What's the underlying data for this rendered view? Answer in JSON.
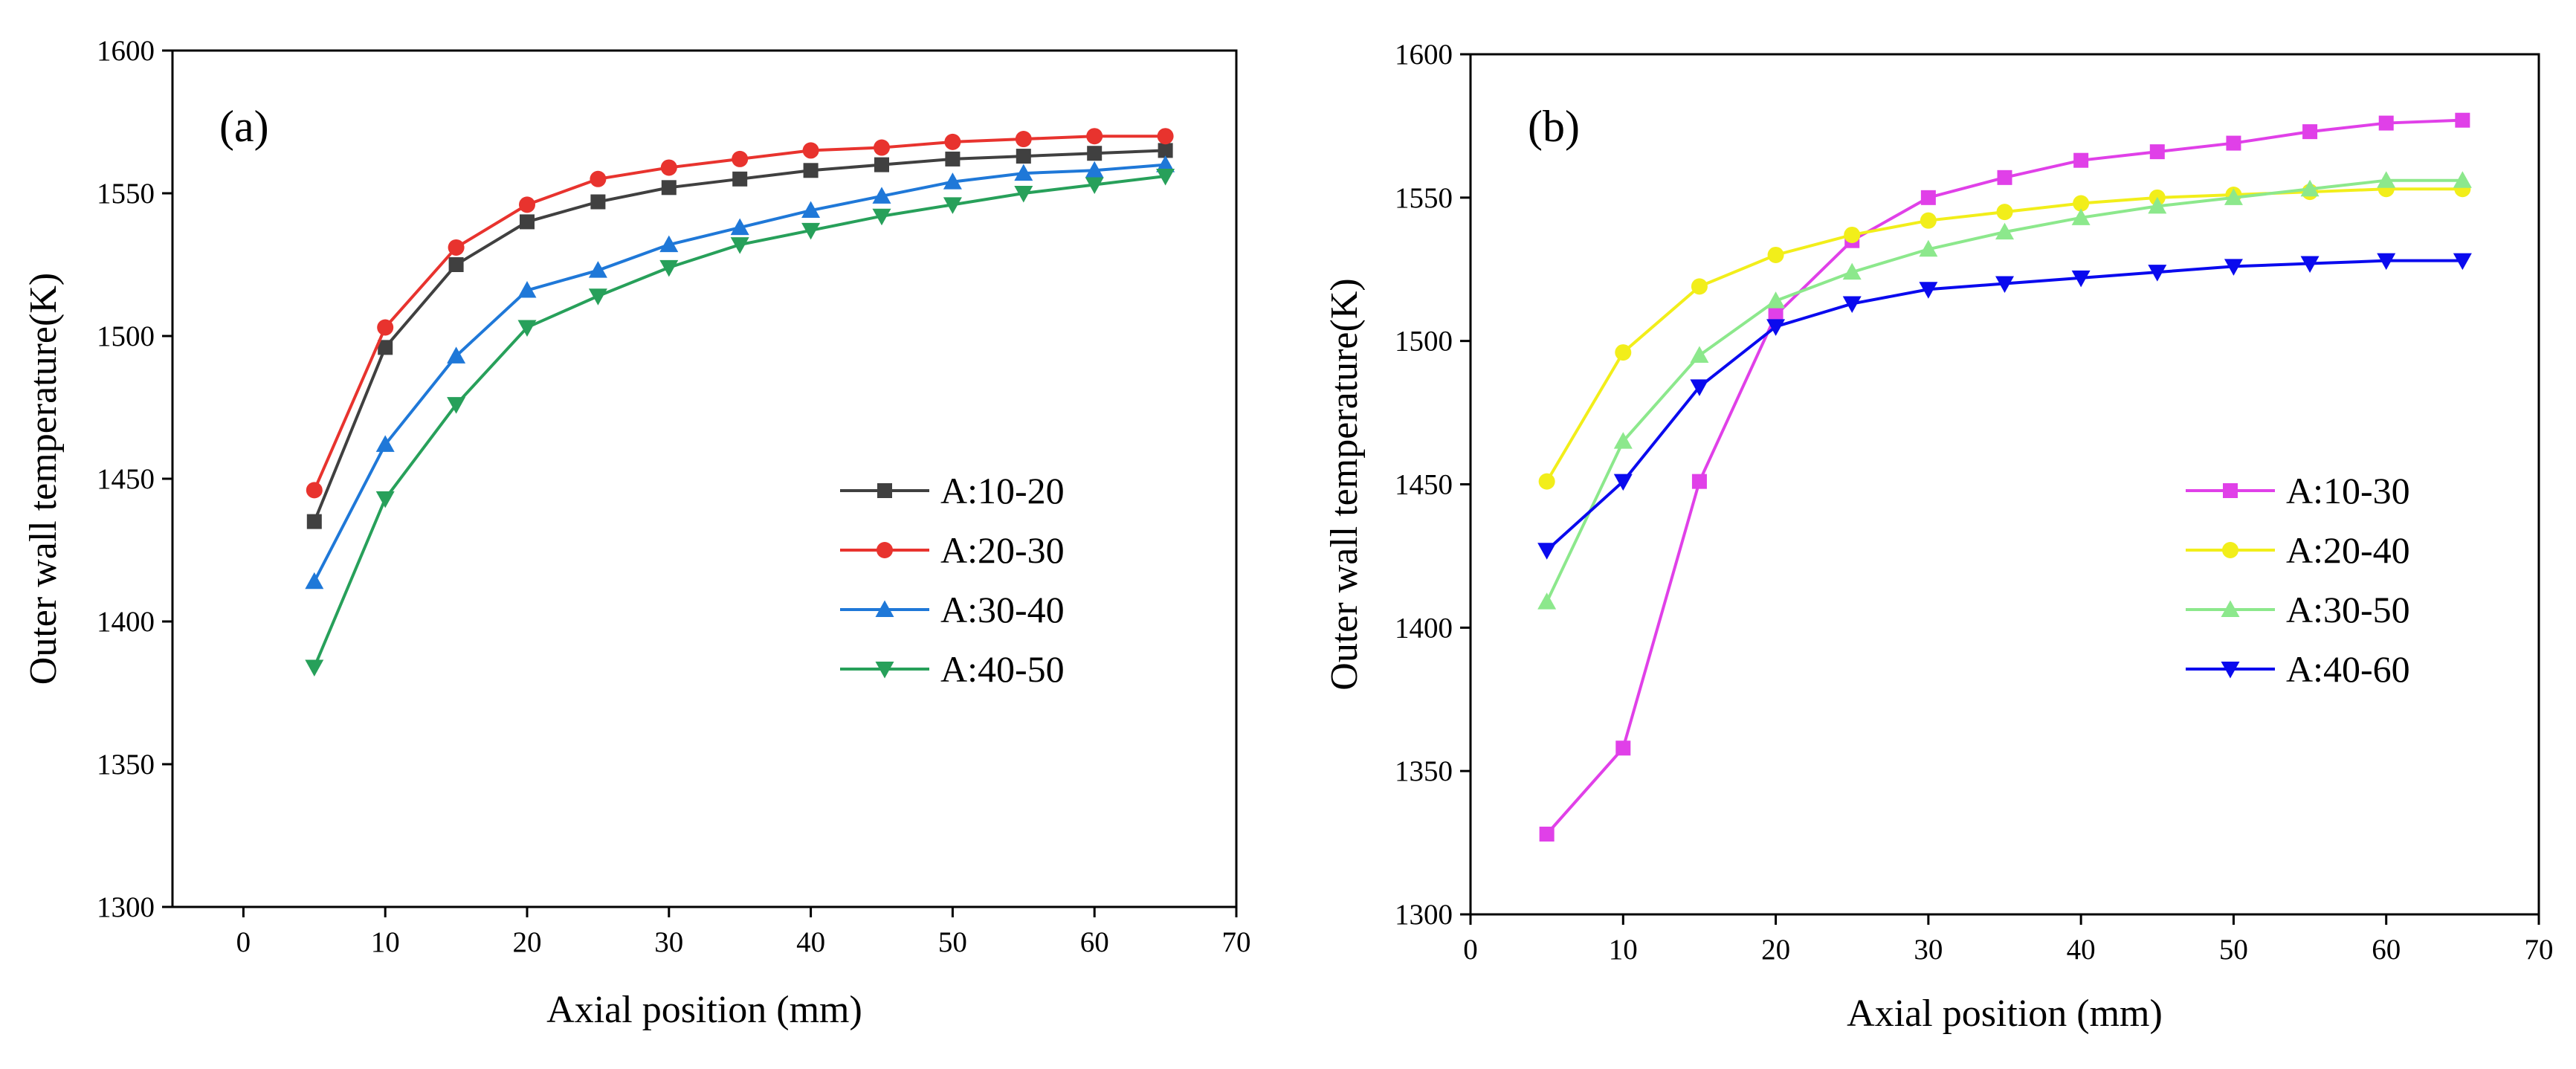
{
  "chart_data": [
    {
      "type": "line",
      "panel_label": "(a)",
      "xlabel": "Axial position (mm)",
      "ylabel": "Outer wall temperature(K)",
      "xlim": [
        -5,
        70
      ],
      "ylim": [
        1300,
        1600
      ],
      "xticks": [
        0,
        10,
        20,
        30,
        40,
        50,
        60,
        70
      ],
      "yticks": [
        1300,
        1350,
        1400,
        1450,
        1500,
        1550,
        1600
      ],
      "legend_position": "center-right",
      "x": [
        5,
        10,
        15,
        20,
        25,
        30,
        35,
        40,
        45,
        50,
        55,
        60,
        65
      ],
      "series": [
        {
          "name": "A:10-20",
          "color": "#404040",
          "marker": "square",
          "values": [
            1435,
            1496,
            1525,
            1540,
            1547,
            1552,
            1555,
            1558,
            1560,
            1562,
            1563,
            1564,
            1565
          ]
        },
        {
          "name": "A:20-30",
          "color": "#e8332e",
          "marker": "circle",
          "values": [
            1446,
            1503,
            1531,
            1546,
            1555,
            1559,
            1562,
            1565,
            1566,
            1568,
            1569,
            1570,
            1570
          ]
        },
        {
          "name": "A:30-40",
          "color": "#1f78d8",
          "marker": "triangle-up",
          "values": [
            1414,
            1462,
            1493,
            1516,
            1523,
            1532,
            1538,
            1544,
            1549,
            1554,
            1557,
            1558,
            1560
          ]
        },
        {
          "name": "A:40-50",
          "color": "#27a05a",
          "marker": "triangle-down",
          "values": [
            1384,
            1443,
            1476,
            1503,
            1514,
            1524,
            1532,
            1537,
            1542,
            1546,
            1550,
            1553,
            1556
          ]
        }
      ]
    },
    {
      "type": "line",
      "panel_label": "(b)",
      "xlabel": "Axial position (mm)",
      "ylabel": "Outer wall temperature(K)",
      "xlim": [
        0,
        70
      ],
      "ylim": [
        1300,
        1600
      ],
      "xticks": [
        0,
        10,
        20,
        30,
        40,
        50,
        60,
        70
      ],
      "yticks": [
        1300,
        1350,
        1400,
        1450,
        1500,
        1550,
        1600
      ],
      "legend_position": "center-right",
      "x": [
        5,
        10,
        15,
        20,
        25,
        30,
        35,
        40,
        45,
        50,
        55,
        60,
        65
      ],
      "series": [
        {
          "name": "A:10-30",
          "color": "#e040e8",
          "marker": "square",
          "values": [
            1328,
            1358,
            1451,
            1509,
            1535,
            1550,
            1557,
            1563,
            1566,
            1569,
            1573,
            1576,
            1577
          ]
        },
        {
          "name": "A:20-40",
          "color": "#f2ee1a",
          "marker": "circle",
          "values": [
            1451,
            1496,
            1519,
            1530,
            1537,
            1542,
            1545,
            1548,
            1550,
            1551,
            1552,
            1553,
            1553
          ]
        },
        {
          "name": "A:30-50",
          "color": "#8ce88c",
          "marker": "triangle-up",
          "values": [
            1409,
            1465,
            1495,
            1514,
            1524,
            1532,
            1538,
            1543,
            1547,
            1550,
            1553,
            1556,
            1556
          ]
        },
        {
          "name": "A:40-60",
          "color": "#0a0aee",
          "marker": "triangle-down",
          "values": [
            1427,
            1451,
            1484,
            1505,
            1513,
            1518,
            1520,
            1522,
            1524,
            1526,
            1527,
            1528,
            1528
          ]
        }
      ]
    }
  ]
}
